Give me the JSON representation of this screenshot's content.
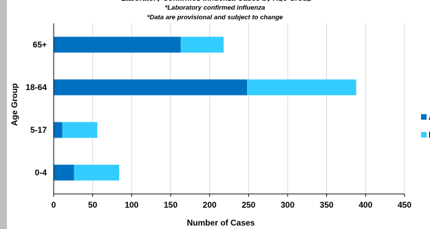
{
  "page": {
    "title_fragment": "(partially cropped title)",
    "subtitles": [
      "*Laboratory confirmed influenza",
      "*Data are provisional and subject to change"
    ]
  },
  "colors": {
    "series_a": "#0070c0",
    "series_b": "#33ccff",
    "grid": "#d9d9d9",
    "axis": "#000000"
  },
  "chart_data": {
    "type": "bar",
    "orientation": "horizontal",
    "stacked": true,
    "categories": [
      "0-4",
      "5-17",
      "18-64",
      "65+"
    ],
    "series": [
      {
        "name": "A",
        "values": [
          26,
          11,
          248,
          163
        ],
        "color": "#0070c0"
      },
      {
        "name": "B",
        "values": [
          58,
          45,
          140,
          55
        ],
        "color": "#33ccff"
      }
    ],
    "xlabel": "Number of Cases",
    "ylabel": "Age Group",
    "xlim": [
      0,
      450
    ],
    "xticks": [
      0,
      50,
      100,
      150,
      200,
      250,
      300,
      350,
      400,
      450
    ],
    "grid": true,
    "legend_placement": "right, partially cropped"
  }
}
